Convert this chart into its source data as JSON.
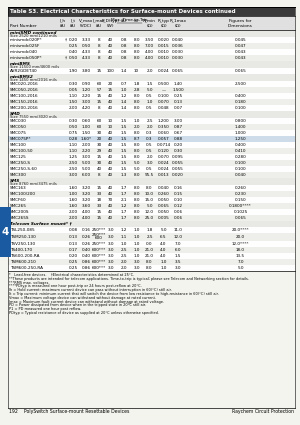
{
  "title": "Table S3. Electrical Characteristics for Surface-mount Devices continued",
  "col_headers_row1": [
    "",
    "I_h",
    "I_t",
    "V_max",
    "I_max",
    "P_D(typ)",
    "Max. Time-to-Trip",
    "",
    "R_min",
    "R_typ",
    "R_1max",
    "Figures for"
  ],
  "col_headers_row2": [
    "Part Number",
    "(A)",
    "(A)",
    "(VDC)",
    "(A)",
    "(W)",
    "(A)",
    "(s)",
    "(Ω)",
    "(Ω)",
    "(Ω)",
    "Dimensions"
  ],
  "section_groups": [
    {
      "header": "miniSMD continued",
      "subheader": "Size 2520 mm/1210 mils",
      "rows": [
        [
          "minismdc020P*",
          "†",
          "0.20",
          "3.33",
          "8",
          "40",
          "0.8",
          "8.0",
          "3.50",
          "0.020",
          "0.040",
          "0.045",
          "S5"
        ],
        [
          "minismdc025F",
          "",
          "0.25",
          "0.50",
          "8",
          "40",
          "0.8",
          "8.0",
          "7.00",
          "0.015",
          "0.036",
          "0.047",
          "S3"
        ],
        [
          "minismdc040",
          "",
          "0.40",
          "4.33",
          "8",
          "40",
          "0.8",
          "8.0",
          "4.00",
          "0.010",
          "0.030",
          "0.043",
          "S5"
        ],
        [
          "minismdc050P*",
          "†",
          "0.50",
          "4.33",
          "8",
          "40",
          "0.8",
          "8.0",
          "4.00",
          "0.010",
          "0.030",
          "0.043",
          "S5"
        ]
      ]
    },
    {
      "header": "miniBMS",
      "subheader": "Size 11500 mm/4600 mils",
      "rows": [
        [
          "AVR2GDET40",
          "",
          "1.90",
          "3.80",
          "15",
          "100",
          "1.4",
          "10",
          "2.0",
          "0.024",
          "0.065",
          "0.065",
          "S3"
        ]
      ]
    },
    {
      "header": "miniBMS2",
      "subheader": "Size 1450 mm/2016 mils",
      "rows": [
        [
          "SMC020-2016",
          "",
          "0.30",
          "0.90",
          "60",
          "20",
          "0.7",
          "1.8",
          "1.5",
          "0.500",
          "1.40",
          "2.500",
          "S6"
        ],
        [
          "SMC050-2016",
          "",
          "0.05",
          "1.20",
          "57",
          "15",
          "1.0",
          "2.8",
          "5.0",
          "—",
          "1.500",
          "",
          "S6"
        ],
        [
          "SMC100-2016",
          "",
          "1.10",
          "2.20",
          "15",
          "40",
          "1.2",
          "8.0",
          "0.5",
          "0.100",
          "0.25",
          "0.400",
          "S6"
        ],
        [
          "SMC150-2016",
          "",
          "1.50",
          "3.00",
          "15",
          "40",
          "1.4",
          "8.0",
          "1.0",
          "0.070",
          "0.13",
          "0.180",
          "S6"
        ],
        [
          "SMC200-2016",
          "",
          "2.00",
          "4.20",
          "8",
          "40",
          "1.4",
          "8.0",
          "0.5",
          "0.048",
          "0.07",
          "0.100",
          "S6"
        ]
      ]
    },
    {
      "header": "SMD",
      "subheader": "Size 7550 mm/3020 mils",
      "rows": [
        [
          "SMC030",
          "",
          "0.30",
          "0.60",
          "60",
          "10",
          "1.5",
          "1.0",
          "2.5",
          "1.200",
          "3.00",
          "0.800",
          "S7"
        ],
        [
          "SMC050",
          "",
          "0.50",
          "1.00",
          "60",
          "10",
          "1.5",
          "2.0",
          "2.0",
          "0.350",
          "0.87",
          "1.400",
          "S7"
        ],
        [
          "SMC075",
          "",
          "0.75",
          "1.50",
          "30",
          "40",
          "1.5",
          "8.0",
          "0.3",
          "0.060",
          "0.67",
          "1.000",
          "S7"
        ],
        [
          "SMC075P*",
          "",
          "0.28",
          "1.60*",
          "20",
          "40",
          "1.5",
          "8.7",
          "0.3",
          "0.057",
          "0.88",
          "1.250",
          "S7"
        ],
        [
          "SMC100",
          "",
          "1.10",
          "2.00",
          "30",
          "40",
          "1.5",
          "8.0",
          "0.5",
          "0.0714",
          "0.20",
          "0.400",
          "S7"
        ],
        [
          "SMC100-50",
          "",
          "1.10",
          "2.20",
          "29",
          "40",
          "1.5",
          "8.0",
          "0.5",
          "0.120",
          "0.30",
          "0.410",
          "S7"
        ],
        [
          "SMC125",
          "",
          "1.25",
          "3.00",
          "15",
          "40",
          "1.5",
          "8.0",
          "2.0",
          "0.070",
          "0.095",
          "0.280",
          "S7"
        ],
        [
          "SMC250-S",
          "",
          "2.50",
          "5.00",
          "30",
          "40",
          "1.5",
          "5.0",
          "3.0",
          "0.024",
          "0.055",
          "0.100",
          "S7"
        ],
        [
          "SMC250-S-60",
          "",
          "2.50",
          "5.00",
          "40",
          "40",
          "1.5",
          "5.0",
          "0.5",
          "0.024",
          "0.055",
          "0.100",
          "S7"
        ],
        [
          "SMC300",
          "",
          "3.00",
          "6.00",
          "8",
          "40",
          "1.3",
          "8.0",
          "95.5",
          "0.013",
          "0.020",
          "0.040",
          "S7"
        ]
      ]
    },
    {
      "header": "SMS",
      "subheader": "Size 8760 mm/3475 mils",
      "rows": [
        [
          "SMC163",
          "",
          "1.60",
          "3.20",
          "15",
          "40",
          "1.7",
          "8.0",
          "8.0",
          "0.040",
          "0.16",
          "0.260",
          "S7"
        ],
        [
          "SMC100/200",
          "",
          "1.00",
          "3.20",
          "33",
          "40",
          "1.7",
          "8.0",
          "10.0",
          "0.260",
          "0.15",
          "0.230",
          "S7"
        ],
        [
          "SMCF60",
          "",
          "1.60",
          "3.20",
          "18",
          "70",
          "2.1",
          "8.0",
          "15.0",
          "0.050",
          "0.10",
          "0.150",
          "S7"
        ],
        [
          "SMC265",
          "",
          "1.60",
          "3.60",
          "33",
          "40",
          "1.2",
          "8.0",
          "5.0",
          "0.065",
          "0.12",
          "0.1800****",
          "S7"
        ],
        [
          "SMC200S",
          "",
          "2.00",
          "4.00",
          "15",
          "40",
          "1.7",
          "8.0",
          "12.0",
          "0.050",
          "0.06",
          "0.1025",
          "S7"
        ],
        [
          "SMC265S",
          "",
          "2.00",
          "4.00",
          "15",
          "40",
          "1.7",
          "8.0",
          "25.0",
          "0.005",
          "0.06",
          "0.065",
          "S7"
        ]
      ]
    },
    {
      "header": "Telecom Surface mount* †",
      "subheader": "",
      "rows": [
        [
          "TSL250-085",
          "",
          "0.08",
          "0.16",
          "250***",
          "3.0",
          "1.2",
          "1.0",
          "1.8",
          "5.0",
          "11.0",
          "20.0****",
          "S7"
        ],
        [
          "TSM250-130",
          "",
          "0.13",
          "0.26",
          "250***\n600",
          "3.0",
          "1.1",
          "1.0",
          "2.5",
          "6.5",
          "12.0",
          "20.0",
          "S8"
        ],
        [
          "TSV250-130",
          "",
          "0.13",
          "0.26",
          "250***",
          "3.0",
          "1.0",
          "1.0",
          "0.0",
          "4.0",
          "7.0",
          "12.0****",
          "S10"
        ],
        [
          "TS400-170",
          "",
          "0.17",
          "0.40",
          "600***",
          "3.0",
          "2.5",
          "1.0",
          "21.0",
          "4.0",
          "6.0",
          "18.0",
          "S4"
        ],
        [
          "TS600-200-RA",
          "",
          "0.20",
          "0.40",
          "600***",
          "3.0",
          "2.5",
          "1.0",
          "21.0",
          "4.0",
          "1.5",
          "13.5",
          "S4"
        ],
        [
          "TSM600-210",
          "",
          "0.25",
          "0.86",
          "600***",
          "3.0",
          "2.0",
          "3.0",
          "8.0",
          "1.0",
          "3.5",
          "7.0",
          "—"
        ],
        [
          "TSM600-250-RA",
          "",
          "0.25",
          "0.86",
          "600***",
          "3.0",
          "2.0",
          "3.0",
          "8.0",
          "1.0",
          "3.0",
          "5.0",
          "—"
        ]
      ]
    }
  ],
  "footnotes": [
    "*   Lead-free devices.    †Electrical characteristics determined at 25°C.",
    "**These products are intended for telecom applications. Time-to-trip is typical; please see Telecom and Networking section for details.",
    "***RMS max. voltages.",
    "****PDtyp is measured one hour post-trip or 24 hours post-reflow at 20°C.",
    "Ih = Hold current: maximum current device can pass without interruption in 60(°C) still air.",
    "It = Trip current: minimum current that will switch the device from low resistance to high-resistance in 60(°C) still air.",
    "Vmax = Maximum voltage device can withstand without damage at rated current.",
    "Imax = Maximum fault current device can withstand without damage at rated voltage.",
    "PD = Power dissipated from device when in the tripped state in 20°C still air.",
    "P1 = PD measured one hour post reflow.",
    "PDtyp = Typical resistance of device as supplied at 20°C unless otherwise specified."
  ],
  "footer_left": "192    PolySwitch Surface-mount Resettable Devices",
  "footer_right": "Raychem Circuit Protection",
  "page_number": "4",
  "bg_color": "#f4f4ef",
  "tab_color": "#1a5aa0",
  "highlight_row": 3,
  "highlight_color": "#cddce8"
}
